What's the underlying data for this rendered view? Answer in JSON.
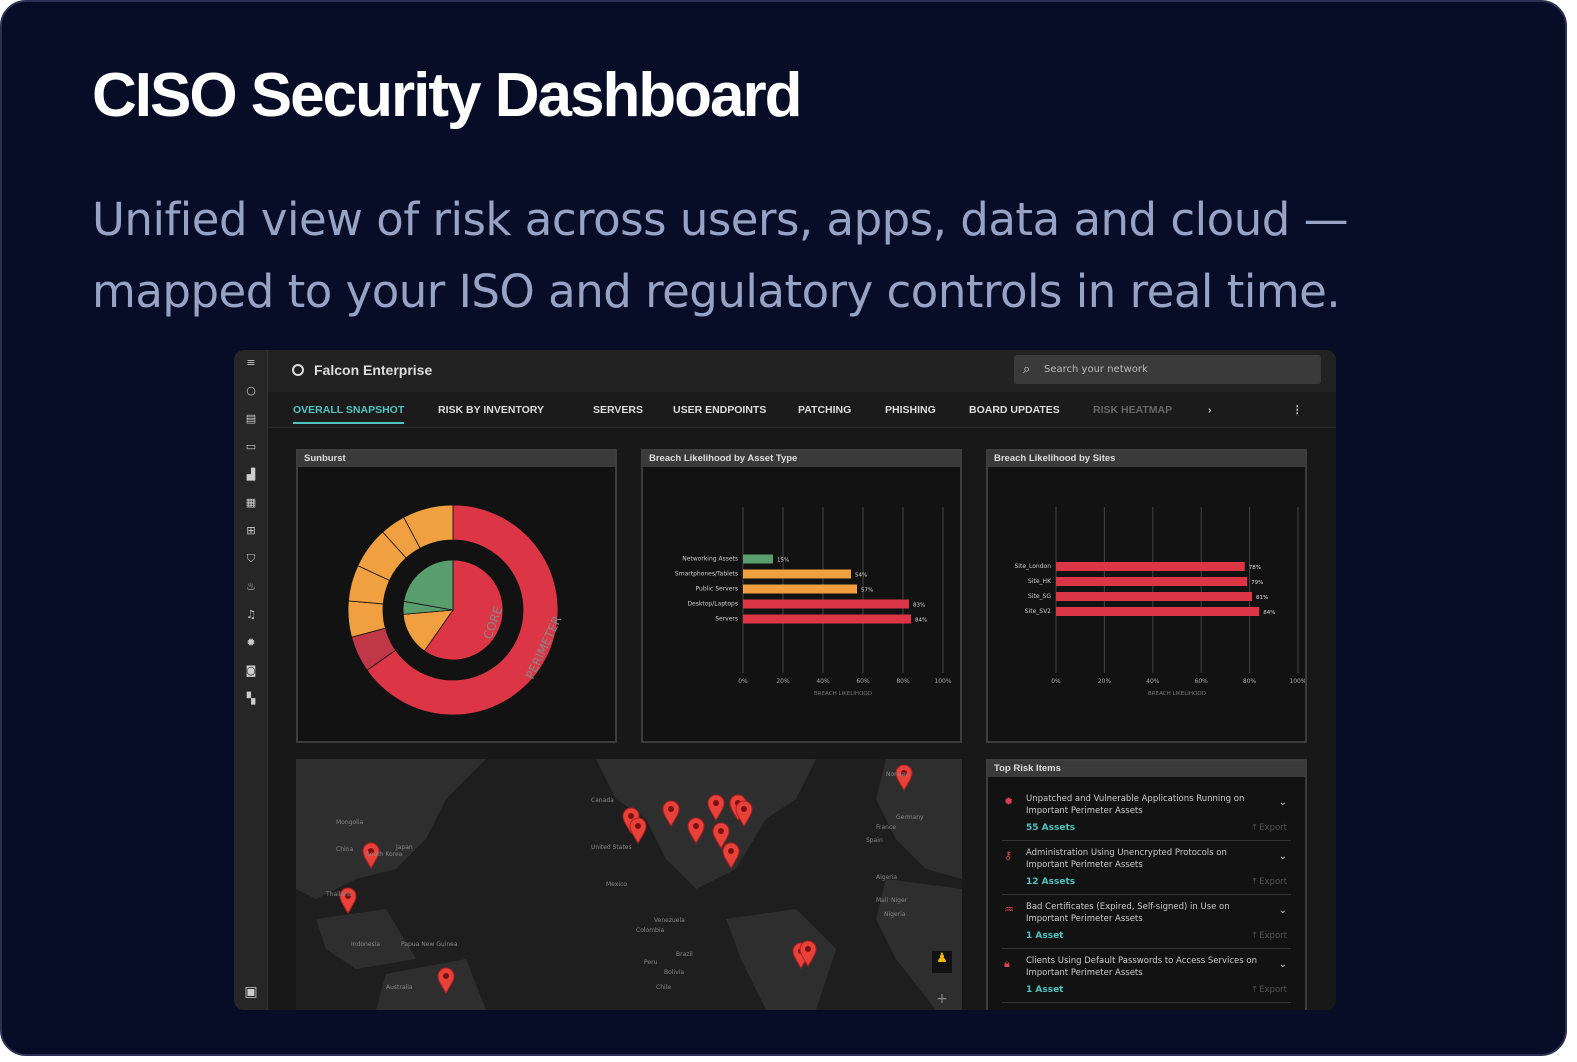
{
  "hero": {
    "title": "CISO Security Dashboard",
    "subtitle": "Unified view of risk across users, apps, data and cloud — mapped to your ISO and regulatory controls in real time."
  },
  "app": {
    "name": "Falcon Enterprise",
    "search_placeholder": "Search your network"
  },
  "tabs": [
    {
      "label": "OVERALL SNAPSHOT",
      "active": true
    },
    {
      "label": "RISK BY INVENTORY"
    },
    {
      "label": "SERVERS"
    },
    {
      "label": "USER ENDPOINTS"
    },
    {
      "label": "PATCHING"
    },
    {
      "label": "PHISHING"
    },
    {
      "label": "BOARD UPDATES"
    },
    {
      "label": "RISK HEATMAP"
    }
  ],
  "sidebar_icons": [
    "menu-icon",
    "circle-icon",
    "id-card-icon",
    "laptop-icon",
    "bar-chart-icon",
    "grid-icon",
    "plus-box-icon",
    "shield-icon",
    "fire-icon",
    "bell-icon",
    "gear-icon",
    "camera-icon",
    "dashboard-icon"
  ],
  "colors": {
    "accent": "#4fc3c0",
    "red": "#dc3545",
    "orange": "#f0a040",
    "green": "#5a9e6e"
  },
  "sunburst": {
    "title": "Sunburst",
    "inner_label": "CORE",
    "outer_label": "PERIMETER"
  },
  "chart_data": [
    {
      "type": "bar",
      "orientation": "horizontal",
      "title": "Breach Likelihood by Asset Type",
      "xlabel": "BREACH LIKELIHOOD",
      "xlim": [
        0,
        100
      ],
      "ticks": [
        "0%",
        "20%",
        "40%",
        "60%",
        "80%",
        "100%"
      ],
      "categories": [
        "Networking Assets",
        "Smartphones/Tablets",
        "Public Servers",
        "Desktop/Laptops",
        "Servers"
      ],
      "values": [
        15,
        54,
        57,
        83,
        84
      ],
      "labels": [
        "15%",
        "54%",
        "57%",
        "83%",
        "84%"
      ],
      "colors": [
        "#5a9e6e",
        "#f0a040",
        "#f0a040",
        "#dc3545",
        "#dc3545"
      ],
      "grid": true
    },
    {
      "type": "bar",
      "orientation": "horizontal",
      "title": "Breach Likelihood by Sites",
      "xlabel": "BREACH LIKELIHOOD",
      "xlim": [
        0,
        100
      ],
      "ticks": [
        "0%",
        "20%",
        "40%",
        "60%",
        "80%",
        "100%"
      ],
      "categories": [
        "Site_London",
        "Site_HK",
        "Site_SG",
        "Site_SV2"
      ],
      "values": [
        78,
        79,
        81,
        84
      ],
      "labels": [
        "78%",
        "79%",
        "81%",
        "84%"
      ],
      "colors": [
        "#dc3545",
        "#dc3545",
        "#dc3545",
        "#dc3545"
      ],
      "grid": true
    }
  ],
  "map": {
    "labels": [
      "Mongolia",
      "China",
      "South Korea",
      "Japan",
      "Thailand",
      "Indonesia",
      "Papua New Guinea",
      "Australia",
      "Canada",
      "United States",
      "Mexico",
      "Venezuela",
      "Colombia",
      "Peru",
      "Brazil",
      "Bolivia",
      "Chile",
      "Norway",
      "Germany",
      "France",
      "Spain",
      "Algeria",
      "Mali",
      "Niger",
      "Nigeria"
    ]
  },
  "top_risk": {
    "title": "Top Risk Items",
    "export_label": "Export",
    "items": [
      {
        "icon": "bug-icon",
        "text": "Unpatched and Vulnerable Applications Running on Important Perimeter Assets",
        "count": "55 Assets"
      },
      {
        "icon": "key-icon",
        "text": "Administration Using Unencrypted Protocols on Important Perimeter Assets",
        "count": "12 Assets"
      },
      {
        "icon": "certificate-icon",
        "text": "Bad Certificates (Expired, Self-signed) in Use on Important Perimeter Assets",
        "count": "1 Asset"
      },
      {
        "icon": "lock-icon",
        "text": "Clients Using Default Passwords to Access Services on Important Perimeter Assets",
        "count": "1 Asset"
      }
    ]
  }
}
